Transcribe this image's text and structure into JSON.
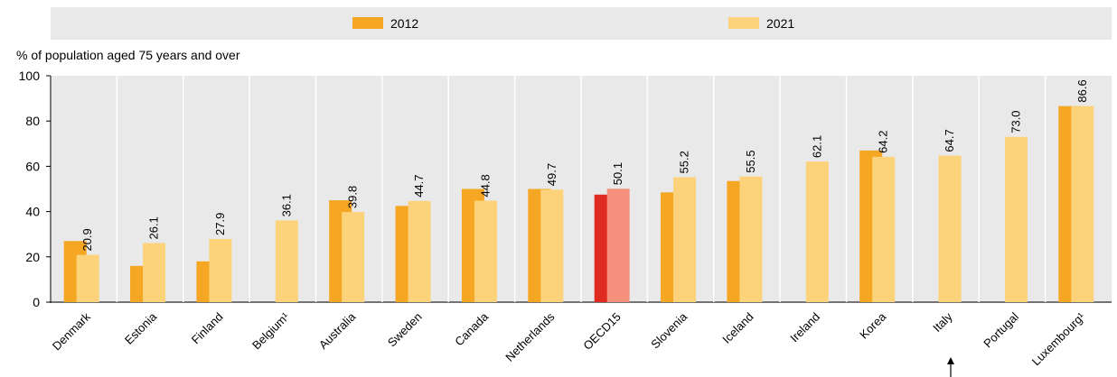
{
  "chart_data": {
    "type": "bar",
    "ylabel": "% of population aged 75 years and over",
    "ylim": [
      0,
      100
    ],
    "yticks": [
      0,
      20,
      40,
      60,
      80,
      100
    ],
    "grid": false,
    "legend_position": "top",
    "categories": [
      "Denmark",
      "Estonia",
      "Finland",
      "Belgium¹",
      "Australia",
      "Sweden",
      "Canada",
      "Netherlands",
      "OECD15",
      "Slovenia",
      "Iceland",
      "Ireland",
      "Korea",
      "Italy",
      "Portugal",
      "Luxembourg¹"
    ],
    "series": [
      {
        "name": "2012",
        "values": [
          27,
          16,
          18,
          null,
          45,
          42.5,
          50,
          50,
          47.5,
          48.5,
          53.5,
          null,
          67,
          null,
          null,
          86.6
        ]
      },
      {
        "name": "2021",
        "values": [
          20.9,
          26.1,
          27.9,
          36.1,
          39.8,
          44.7,
          44.8,
          49.7,
          50.1,
          55.2,
          55.5,
          62.1,
          64.2,
          64.7,
          73.0,
          86.6
        ]
      }
    ],
    "data_labels": [
      "20.9",
      "26.1",
      "27.9",
      "36.1",
      "39.8",
      "44.7",
      "44.8",
      "49.7",
      "50.1",
      "55.2",
      "55.5",
      "62.1",
      "64.2",
      "64.7",
      "73.0",
      "86.6"
    ],
    "highlight_category": "OECD15",
    "colors": {
      "s2012": "#F5A623",
      "s2021": "#FCD27A",
      "oecd2012": "#E02B20",
      "oecd2021": "#F4907C",
      "legend_bg": "#E9E9E9",
      "plot_bg": "#E9E9E9"
    }
  }
}
